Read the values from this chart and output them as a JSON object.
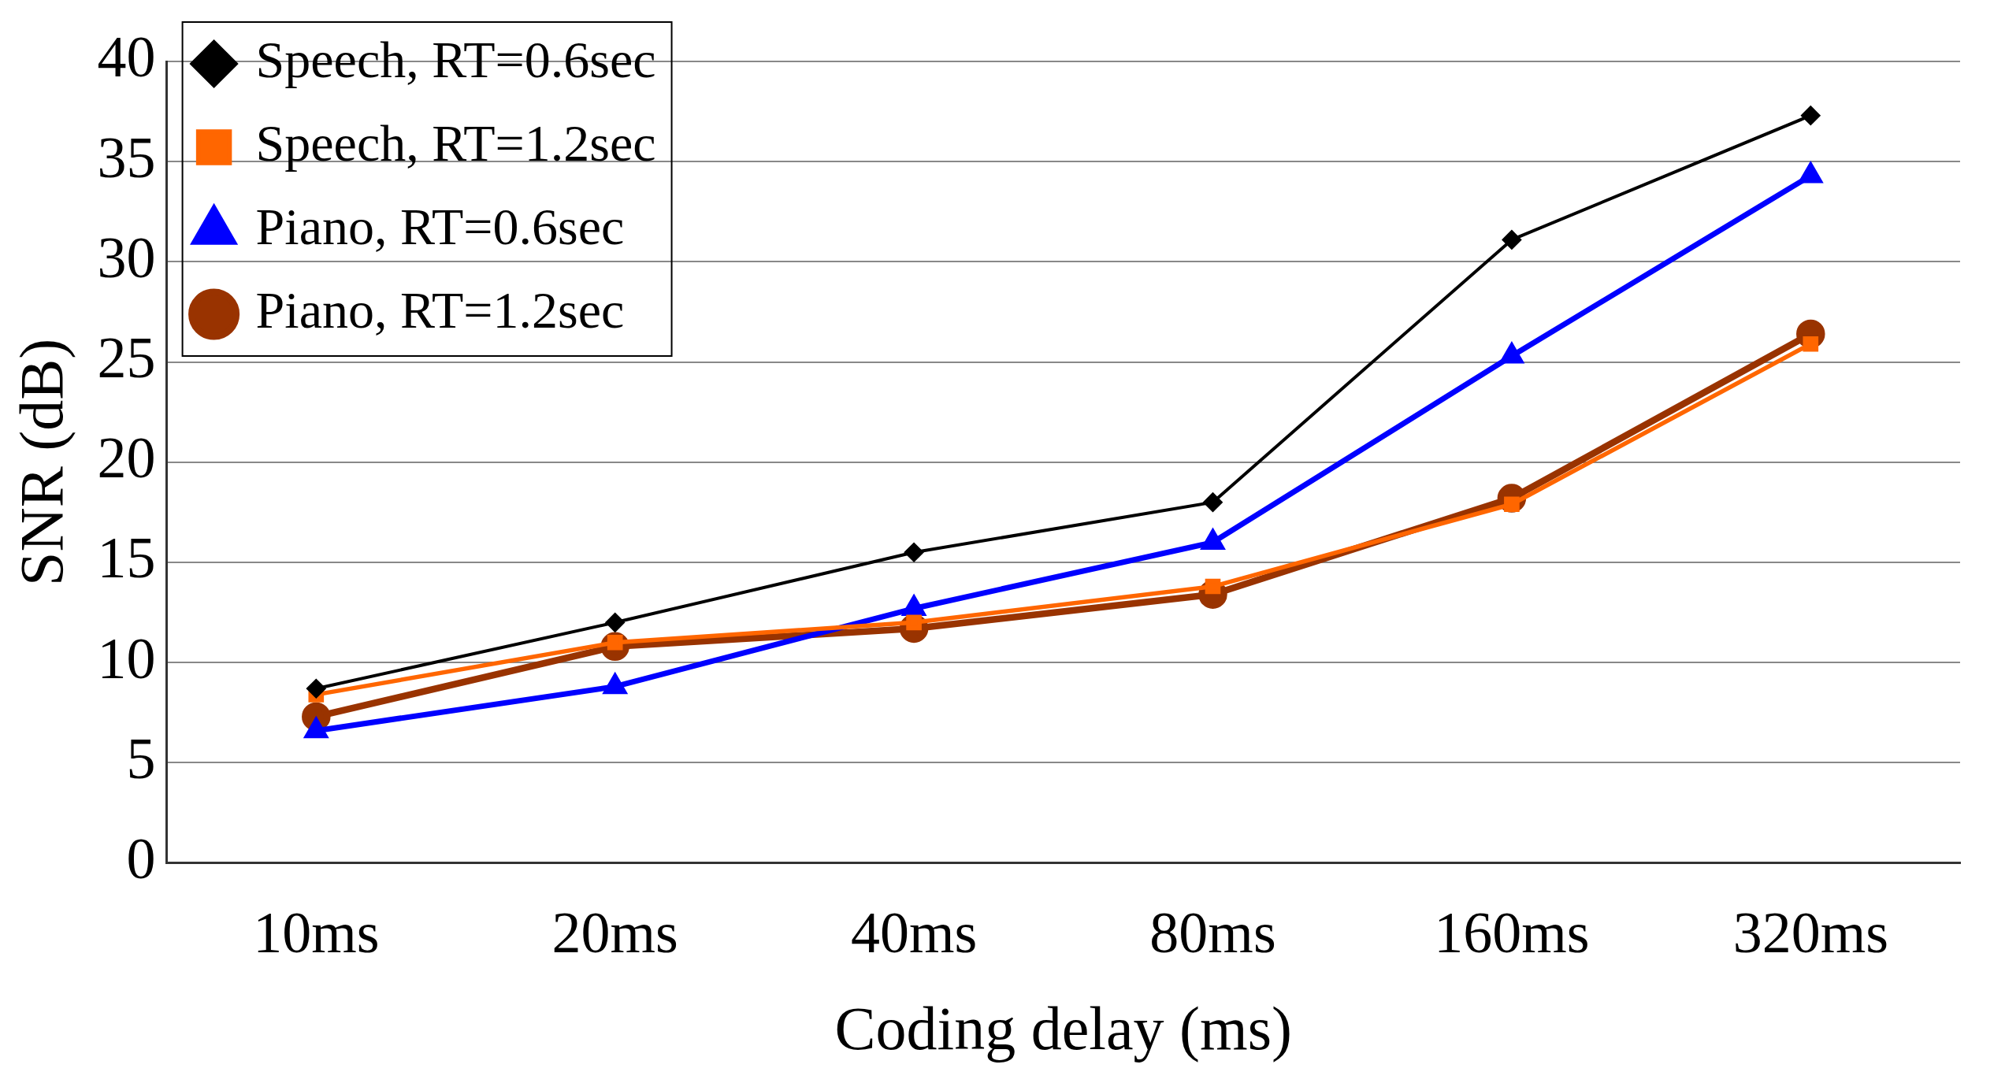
{
  "chart_data": {
    "type": "line",
    "xlabel": "Coding delay (ms)",
    "ylabel": "SNR (dB)",
    "categories": [
      "10ms",
      "20ms",
      "40ms",
      "80ms",
      "160ms",
      "320ms"
    ],
    "series": [
      {
        "name": "Speech, RT=0.6sec",
        "color": "#000000",
        "marker": "diamond",
        "values": [
          8.7,
          12.0,
          15.5,
          18.0,
          31.1,
          37.3
        ]
      },
      {
        "name": "Speech, RT=1.2sec",
        "color": "#ff6600",
        "marker": "square",
        "values": [
          8.4,
          11.0,
          12.0,
          13.8,
          17.9,
          25.9
        ]
      },
      {
        "name": "Piano, RT=0.6sec",
        "color": "#0000ff",
        "marker": "triangle",
        "values": [
          6.6,
          8.8,
          12.7,
          16.0,
          25.3,
          34.3
        ]
      },
      {
        "name": "Piano, RT=1.2sec",
        "color": "#993300",
        "marker": "circle",
        "values": [
          7.3,
          10.8,
          11.7,
          13.4,
          18.2,
          26.4
        ]
      }
    ],
    "ylim": [
      0,
      40
    ],
    "yticks": [
      0,
      5,
      10,
      15,
      20,
      25,
      30,
      35,
      40
    ],
    "grid": "y",
    "legend": "top left",
    "line_style": "solid"
  }
}
